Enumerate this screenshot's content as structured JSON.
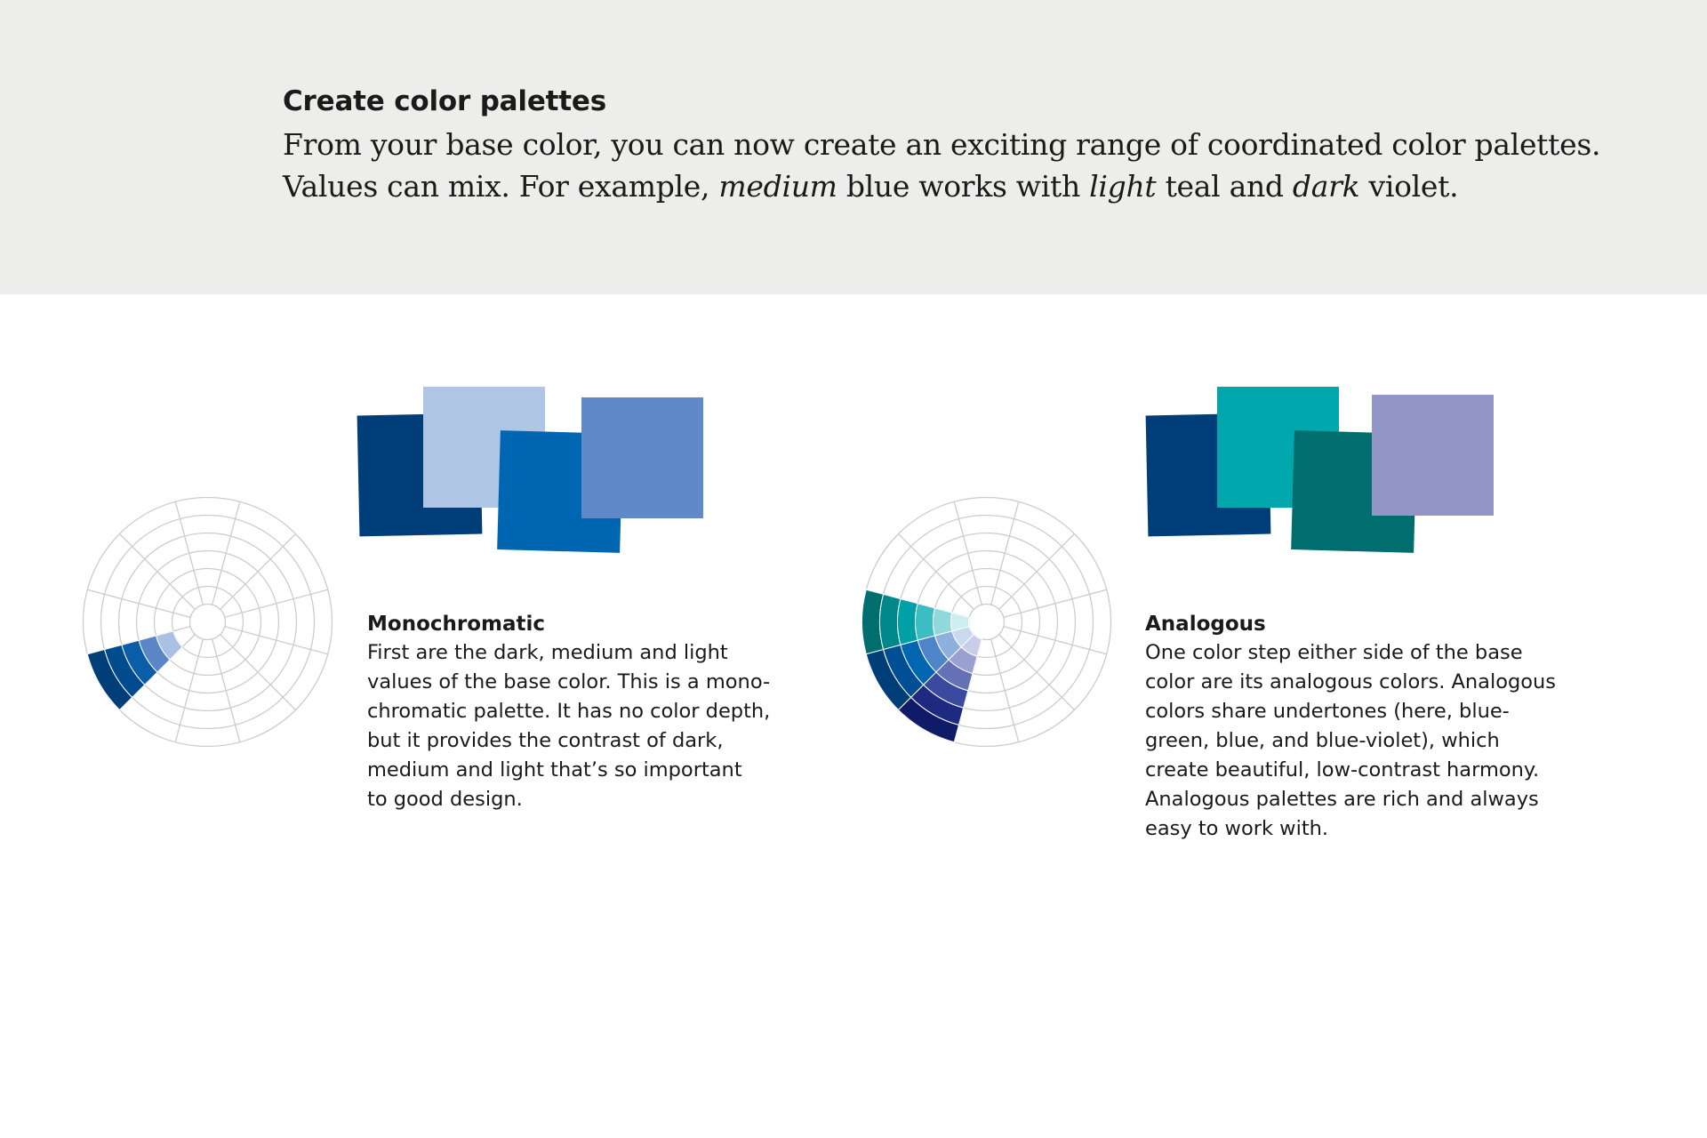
{
  "header": {
    "title": "Create color palettes",
    "intro": {
      "line1": "From your base color, you can now create an exciting range of coordinated color palettes.",
      "line2_a": "Values can mix. For example, ",
      "line2_em1": "medium",
      "line2_b": " blue works with ",
      "line2_em2": "light",
      "line2_c": " teal and ",
      "line2_em3": "dark",
      "line2_d": " violet."
    }
  },
  "monochromatic": {
    "title": "Monochromatic",
    "lines": [
      "First are the dark, medium and light",
      "values of the base color. This is a mono-",
      "chromatic palette. It has no color depth,",
      "but it provides the contrast of dark,",
      "medium and light that’s so important",
      "to good design."
    ],
    "swatch_colors": [
      "#003e7a",
      "#aec5e6",
      "#0066b2",
      "#6089c9"
    ]
  },
  "analogous": {
    "title": "Analogous",
    "lines": [
      "One color step either side of the base",
      "color are its analogous colors. Analogous",
      "colors share undertones (here, blue-",
      "green, blue, and blue-violet), which",
      "create beautiful, low-contrast harmony.",
      "Analogous palettes are rich and always",
      "easy to work with."
    ],
    "swatch_colors": [
      "#003e7a",
      "#00a8ae",
      "#006e6e",
      "#9196c7"
    ]
  }
}
